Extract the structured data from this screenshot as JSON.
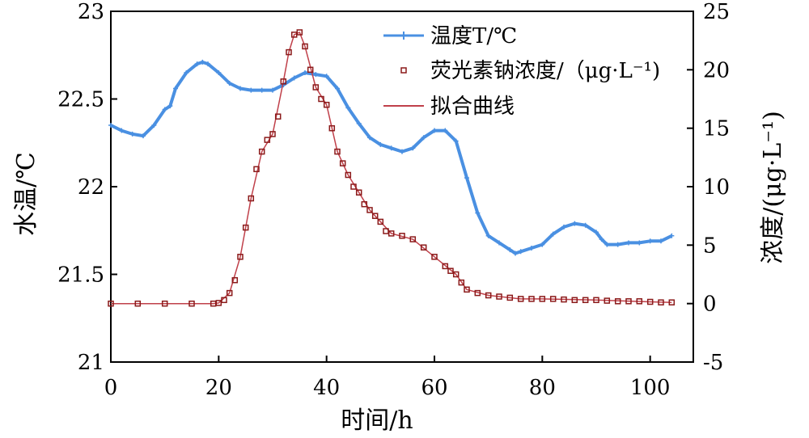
{
  "chart_data": {
    "type": "line",
    "xlabel": "时间/h",
    "ylabel_left": "水温/℃",
    "ylabel_right": "浓度/(μg·L⁻¹)",
    "xlim": [
      0,
      108
    ],
    "ylim_left": [
      21,
      23
    ],
    "ylim_right": [
      -5,
      25
    ],
    "x_ticks": [
      "0",
      "20",
      "40",
      "60",
      "80",
      "100"
    ],
    "y_left_ticks": [
      "21",
      "21.5",
      "22",
      "22.5",
      "23"
    ],
    "y_right_ticks": [
      "-5",
      "0",
      "5",
      "10",
      "15",
      "20",
      "25"
    ],
    "grid": false,
    "legend_position": "top-right",
    "series": [
      {
        "name": "温度T/℃",
        "axis": "left",
        "color": "#4a90e2",
        "x": [
          0,
          2,
          4,
          6,
          8,
          10,
          11,
          12,
          14,
          16,
          17,
          18,
          20,
          22,
          24,
          26,
          28,
          30,
          32,
          34,
          36,
          38,
          40,
          42,
          44,
          46,
          48,
          50,
          52,
          54,
          56,
          58,
          60,
          62,
          64,
          66,
          68,
          70,
          72,
          74,
          75,
          76,
          78,
          80,
          82,
          84,
          86,
          88,
          90,
          91,
          92,
          94,
          96,
          98,
          100,
          102,
          104
        ],
        "values": [
          22.35,
          22.32,
          22.3,
          22.29,
          22.35,
          22.44,
          22.46,
          22.56,
          22.65,
          22.7,
          22.71,
          22.7,
          22.65,
          22.59,
          22.56,
          22.55,
          22.55,
          22.55,
          22.58,
          22.62,
          22.65,
          22.64,
          22.63,
          22.56,
          22.45,
          22.36,
          22.28,
          22.24,
          22.22,
          22.2,
          22.22,
          22.28,
          22.32,
          22.32,
          22.26,
          22.05,
          21.85,
          21.72,
          21.68,
          21.64,
          21.62,
          21.63,
          21.65,
          21.67,
          21.73,
          21.77,
          21.79,
          21.78,
          21.74,
          21.7,
          21.67,
          21.67,
          21.68,
          21.68,
          21.69,
          21.69,
          21.72
        ]
      },
      {
        "name": "荧光素钠浓度/（μg·L⁻¹)",
        "axis": "right",
        "color": "#8b1a1a",
        "marker": "square",
        "x": [
          0,
          5,
          10,
          15,
          19,
          20,
          21,
          22,
          23,
          24,
          25,
          26,
          27,
          28,
          29,
          30,
          31,
          32,
          33,
          34,
          35,
          36,
          37,
          38,
          39,
          40,
          41,
          42,
          43,
          44,
          45,
          46,
          47,
          48,
          49,
          50,
          51,
          52,
          54,
          56,
          58,
          60,
          62,
          63,
          64,
          65,
          66,
          68,
          70,
          72,
          74,
          76,
          78,
          80,
          82,
          84,
          86,
          88,
          90,
          92,
          94,
          96,
          98,
          100,
          102,
          104
        ],
        "values": [
          0,
          0,
          0,
          0,
          0,
          0.05,
          0.3,
          0.9,
          2,
          4,
          6.5,
          9,
          11.5,
          13,
          14,
          14.5,
          16,
          19,
          21.5,
          23,
          23.2,
          22,
          20,
          18.5,
          17.5,
          17,
          15,
          13,
          12,
          11,
          10,
          9.5,
          8.5,
          8,
          7.5,
          7,
          6.2,
          6,
          5.8,
          5.5,
          4.8,
          4,
          3.2,
          2.8,
          2.5,
          1.8,
          1.2,
          0.9,
          0.7,
          0.6,
          0.5,
          0.4,
          0.4,
          0.4,
          0.4,
          0.35,
          0.3,
          0.3,
          0.3,
          0.25,
          0.2,
          0.2,
          0.2,
          0.15,
          0.1,
          0.1
        ]
      },
      {
        "name": "拟合曲线",
        "axis": "right",
        "color": "#c0404a",
        "x": [
          0,
          19,
          20,
          22,
          24,
          26,
          28,
          30,
          32,
          33,
          34,
          35,
          36,
          38,
          40,
          42,
          44,
          46,
          48,
          50,
          52,
          56,
          60,
          64,
          66,
          70,
          76,
          80,
          90,
          100,
          104
        ],
        "values": [
          0,
          0,
          0.05,
          0.9,
          4,
          9,
          13,
          14.5,
          19,
          21.5,
          23,
          23.2,
          22,
          18.5,
          17,
          13,
          11,
          9.5,
          8,
          7,
          6,
          5.5,
          4,
          2.5,
          1.2,
          0.7,
          0.4,
          0.4,
          0.3,
          0.15,
          0.1
        ]
      }
    ]
  }
}
